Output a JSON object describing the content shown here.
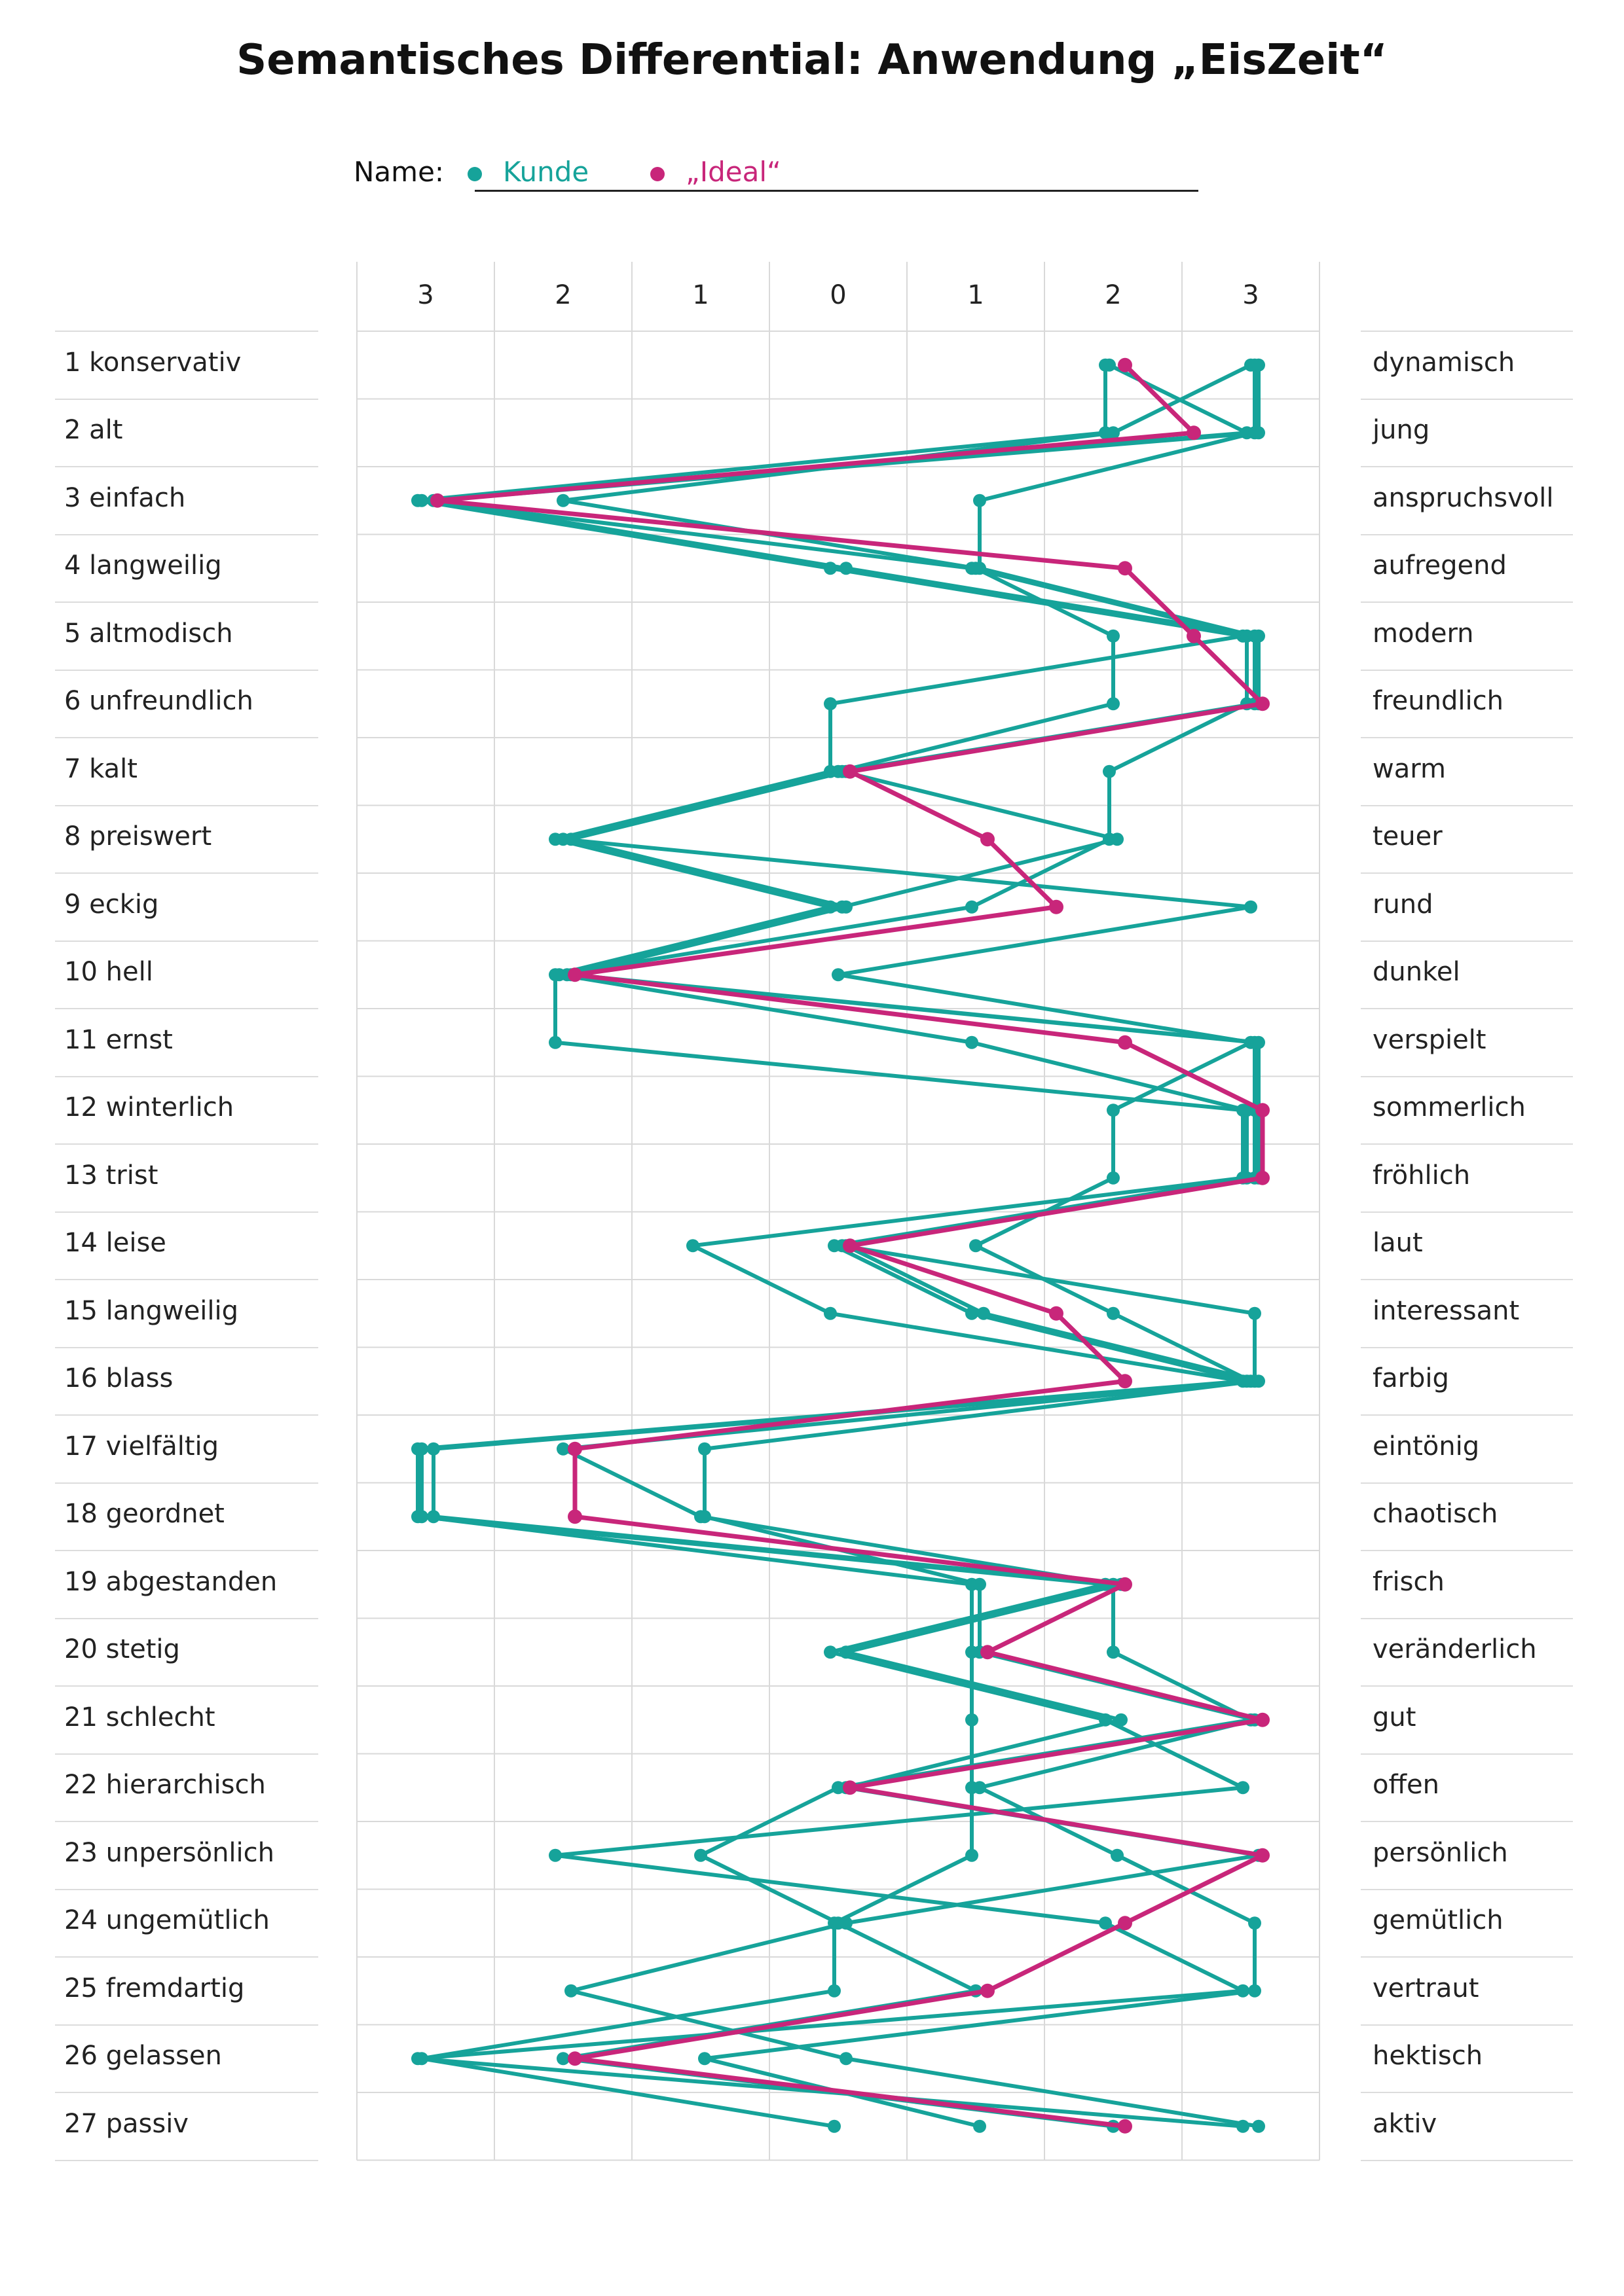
{
  "title": "Semantisches Differential: Anwendung „EisZeit“",
  "legend": {
    "name_label": "Name:",
    "colors": {
      "kunde": "#16a39a",
      "ideal": "#c8267a"
    }
  },
  "chart_data": {
    "type": "line",
    "orientation": "vertical-profile",
    "scale_labels": [
      "3",
      "2",
      "1",
      "0",
      "1",
      "2",
      "3"
    ],
    "x_range": [
      -3,
      3
    ],
    "grid": true,
    "legend_placement": "top",
    "items": [
      {
        "left": "1 konservativ",
        "right": "dynamisch"
      },
      {
        "left": "2 alt",
        "right": "jung"
      },
      {
        "left": "3 einfach",
        "right": "anspruchsvoll"
      },
      {
        "left": "4 langweilig",
        "right": "aufregend"
      },
      {
        "left": "5 altmodisch",
        "right": "modern"
      },
      {
        "left": "6 unfreundlich",
        "right": "freundlich"
      },
      {
        "left": "7 kalt",
        "right": "warm"
      },
      {
        "left": "8 preiswert",
        "right": "teuer"
      },
      {
        "left": "9 eckig",
        "right": "rund"
      },
      {
        "left": "10 hell",
        "right": "dunkel"
      },
      {
        "left": "11 ernst",
        "right": "verspielt"
      },
      {
        "left": "12 winterlich",
        "right": "sommerlich"
      },
      {
        "left": "13 trist",
        "right": "fröhlich"
      },
      {
        "left": "14 leise",
        "right": "laut"
      },
      {
        "left": "15 langweilig",
        "right": "interessant"
      },
      {
        "left": "16 blass",
        "right": "farbig"
      },
      {
        "left": "17 vielfältig",
        "right": "eintönig"
      },
      {
        "left": "18 geordnet",
        "right": "chaotisch"
      },
      {
        "left": "19 abgestanden",
        "right": "frisch"
      },
      {
        "left": "20 stetig",
        "right": "veränderlich"
      },
      {
        "left": "21 schlecht",
        "right": "gut"
      },
      {
        "left": "22 hierarchisch",
        "right": "offen"
      },
      {
        "left": "23 unpersönlich",
        "right": "persönlich"
      },
      {
        "left": "24 ungemütlich",
        "right": "gemütlich"
      },
      {
        "left": "25 fremdartig",
        "right": "vertraut"
      },
      {
        "left": "26 gelassen",
        "right": "hektisch"
      },
      {
        "left": "27 passiv",
        "right": "aktiv"
      }
    ],
    "series": [
      {
        "name": "Kunde",
        "role": "kunde",
        "values": [
          2,
          2,
          -3,
          0,
          3,
          0,
          0,
          -2,
          0,
          -2,
          -2,
          3,
          3,
          -1,
          0,
          3,
          -3,
          -3,
          2,
          0,
          2,
          3,
          -2,
          2,
          3,
          -3,
          3
        ]
      },
      {
        "name": "Kunde",
        "role": "kunde",
        "values": [
          2,
          3,
          -3,
          1,
          3,
          3,
          2,
          2,
          1,
          -2,
          1,
          3,
          3,
          0,
          1,
          3,
          -3,
          -3,
          1,
          1,
          1,
          1,
          1,
          0,
          0,
          -3,
          0
        ]
      },
      {
        "name": "Kunde",
        "role": "kunde",
        "values": [
          3,
          2,
          -2,
          1,
          2,
          2,
          0,
          -2,
          3,
          0,
          3,
          2,
          2,
          1,
          2,
          3,
          -2,
          -1,
          2,
          2,
          3,
          0,
          -1,
          0,
          1,
          -2,
          2
        ]
      },
      {
        "name": "Kunde",
        "role": "kunde",
        "values": [
          3,
          3,
          1,
          1,
          3,
          3,
          0,
          2,
          0,
          -2,
          3,
          3,
          3,
          0,
          3,
          3,
          -1,
          -1,
          1,
          1,
          3,
          1,
          2,
          3,
          3,
          -1,
          1
        ]
      },
      {
        "name": "Kunde",
        "role": "kunde",
        "values": [
          3,
          3,
          -3,
          0,
          3,
          3,
          0,
          -2,
          0,
          -2,
          3,
          3,
          3,
          0,
          1,
          3,
          -3,
          -3,
          2,
          0,
          2,
          0,
          3,
          0,
          -2,
          0,
          3
        ]
      },
      {
        "name": "„Ideal“",
        "role": "ideal",
        "values": [
          2,
          2.5,
          -3,
          2,
          2.5,
          3,
          0,
          1,
          1.5,
          -2,
          2,
          3,
          3,
          0,
          1.5,
          2,
          -2,
          -2,
          2,
          1,
          3,
          0,
          3,
          2,
          1,
          -2,
          2
        ]
      }
    ]
  }
}
